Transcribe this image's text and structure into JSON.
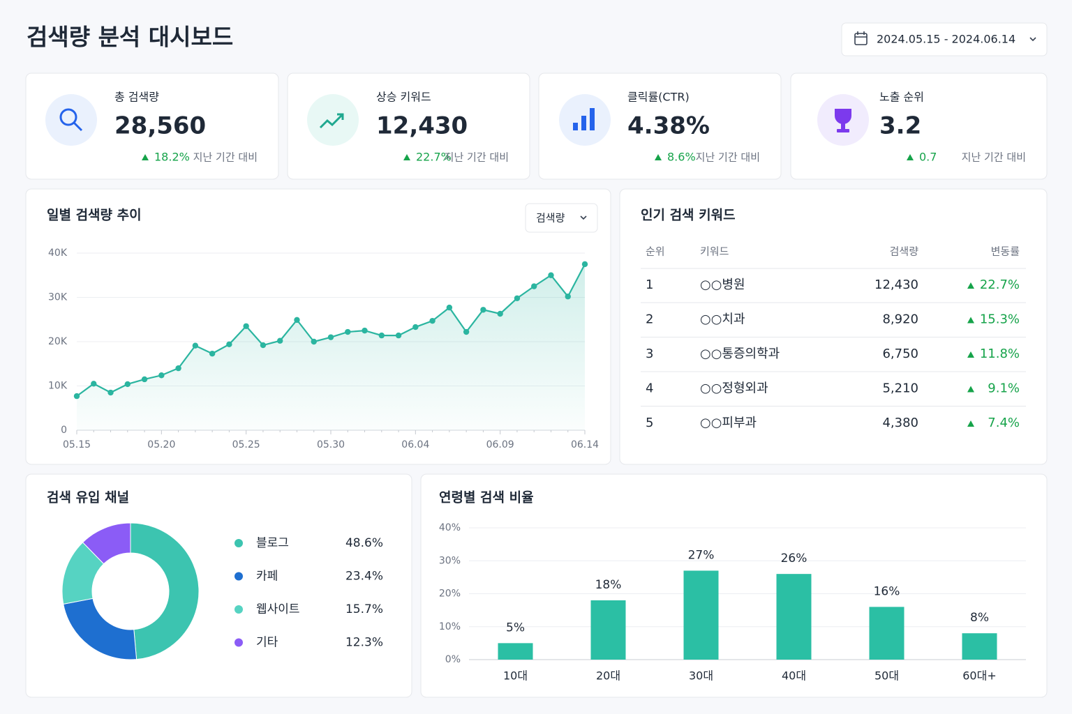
{
  "header": {
    "title": "검색량 분석 대시보드",
    "date_range": "2024.05.15 - 2024.06.14"
  },
  "kpis": [
    {
      "label": "총 검색량",
      "value": "28,560",
      "change": "18.2%",
      "note": "지난 기간 대비"
    },
    {
      "label": "상승 키워드",
      "value": "12,430",
      "change": "22.7%",
      "note": "지난 기간 대비"
    },
    {
      "label": "클릭률(CTR)",
      "value": "4.38%",
      "change": "8.6%",
      "note": "지난 기간 대비"
    },
    {
      "label": "노출 순위",
      "value": "3.2",
      "change": "0.7",
      "note": "지난 기간 대비"
    }
  ],
  "table": {
    "title": "인기 검색 키워드",
    "headers": [
      "순위",
      "키워드",
      "검색량",
      "변동률"
    ],
    "rows": [
      [
        "1",
        "○○병원",
        "12,430",
        "22.7%"
      ],
      [
        "2",
        "○○치과",
        "8,920",
        "15.3%"
      ],
      [
        "3",
        "○○통증의학과",
        "6,750",
        "11.8%"
      ],
      [
        "4",
        "○○정형외과",
        "5,210",
        "9.1%"
      ],
      [
        "5",
        "○○피부과",
        "4,380",
        "7.4%"
      ]
    ]
  },
  "chart_data": [
    {
      "type": "line",
      "title": "일별 검색량 추이",
      "dropdown": "검색량",
      "categories": [
        "05.15",
        null,
        null,
        null,
        null,
        "05.20",
        null,
        null,
        null,
        null,
        "05.25",
        null,
        null,
        null,
        null,
        "05.30",
        null,
        null,
        null,
        null,
        "06.04",
        null,
        null,
        null,
        null,
        "06.09",
        null,
        null,
        null,
        null,
        "06.14"
      ],
      "series": [
        {
          "name": "검색량",
          "color": "#2bb5a0",
          "values": [
            7700,
            10500,
            8500,
            10400,
            11500,
            12400,
            14000,
            19100,
            17300,
            19400,
            23500,
            19200,
            20200,
            24900,
            20000,
            21000,
            22200,
            22500,
            21400,
            21400,
            23300,
            24700,
            27700,
            22200,
            27200,
            26300,
            29800,
            32500,
            35000,
            30200,
            37500
          ]
        }
      ],
      "ylim": [
        0,
        40000
      ],
      "yticks": [
        0,
        {
          "value": 10000,
          "label": "10K"
        },
        {
          "value": 20000,
          "label": "20K"
        },
        {
          "value": 30000,
          "label": "30K"
        },
        {
          "value": 40000,
          "label": "40K"
        }
      ],
      "grid": true
    },
    {
      "type": "pie",
      "title": "검색 유입 채널",
      "categories": [
        "블로그",
        "카페",
        "웹사이트",
        "기타"
      ],
      "values": [
        48.6,
        23.4,
        15.7,
        12.3
      ],
      "value_labels": [
        "48.6%",
        "23.4%",
        "15.7%",
        "12.3%"
      ],
      "colors": [
        "#3cc4b0",
        "#1e6fd0",
        "#56d3c2",
        "#8b5cf6"
      ]
    },
    {
      "type": "bar",
      "title": "연령별 검색 비율",
      "categories": [
        "10대",
        "20대",
        "30대",
        "40대",
        "50대",
        "60대+"
      ],
      "values": [
        5,
        18,
        27,
        26,
        16,
        8
      ],
      "value_labels": [
        "5%",
        "18%",
        "27%",
        "26%",
        "16%",
        "8%"
      ],
      "color": "#2bbfa4",
      "ylim": [
        0,
        40
      ],
      "yticks": [
        {
          "value": 0,
          "label": "0%"
        },
        {
          "value": 10,
          "label": "10%"
        },
        {
          "value": 20,
          "label": "20%"
        },
        {
          "value": 30,
          "label": "30%"
        },
        {
          "value": 40,
          "label": "40%"
        }
      ],
      "grid": true
    }
  ]
}
